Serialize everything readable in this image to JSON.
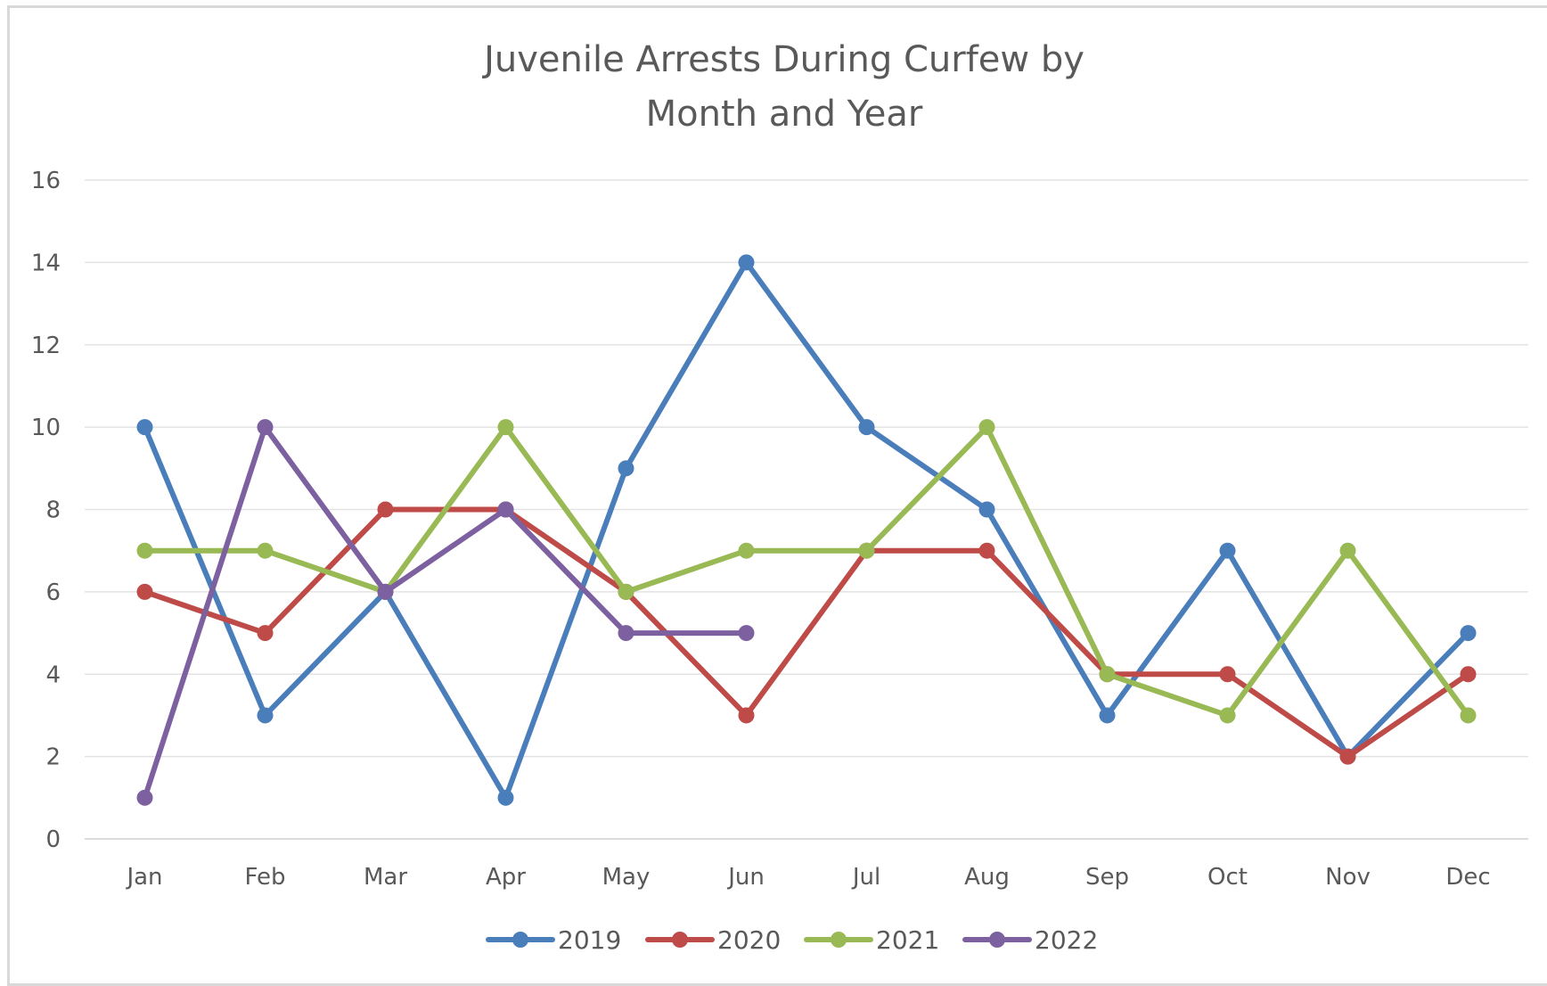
{
  "chart_data": {
    "type": "line",
    "title_lines": [
      "Juvenile Arrests During Curfew by",
      "Month and Year"
    ],
    "xlabel": "",
    "ylabel": "",
    "categories": [
      "Jan",
      "Feb",
      "Mar",
      "Apr",
      "May",
      "Jun",
      "Jul",
      "Aug",
      "Sep",
      "Oct",
      "Nov",
      "Dec"
    ],
    "ylim": [
      0,
      16
    ],
    "yticks": [
      0,
      2,
      4,
      6,
      8,
      10,
      12,
      14,
      16
    ],
    "grid": true,
    "legend_position": "bottom",
    "series": [
      {
        "name": "2019",
        "color": "#4a7ebb",
        "values": [
          10,
          3,
          6,
          1,
          9,
          14,
          10,
          8,
          3,
          7,
          2,
          5
        ]
      },
      {
        "name": "2020",
        "color": "#be4b48",
        "values": [
          6,
          5,
          8,
          8,
          6,
          3,
          7,
          7,
          4,
          4,
          2,
          4
        ]
      },
      {
        "name": "2021",
        "color": "#98b954",
        "values": [
          7,
          7,
          6,
          10,
          6,
          7,
          7,
          10,
          4,
          3,
          7,
          3
        ]
      },
      {
        "name": "2022",
        "color": "#7d60a0",
        "values": [
          1,
          10,
          6,
          8,
          5,
          5,
          null,
          null,
          null,
          null,
          null,
          null
        ]
      }
    ]
  }
}
